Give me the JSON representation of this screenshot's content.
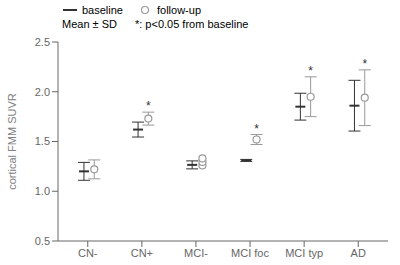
{
  "chart_data": {
    "type": "errorbar",
    "categories": [
      "CN-",
      "CN+",
      "MCI-",
      "MCI foc",
      "MCI typ",
      "AD"
    ],
    "ylabel": "cortical FMM SUVR",
    "ylim": [
      0.5,
      2.5
    ],
    "yticks": [
      0.5,
      {
        "value": 1,
        "label": "1.0"
      },
      1.5,
      {
        "value": 2,
        "label": "2.0"
      },
      2.5
    ],
    "grid": false,
    "legend": "upper left",
    "annotations": [
      "Mean ± SD",
      "*: p<0.05 from baseline"
    ],
    "significance_label": "*",
    "series": [
      {
        "name": "baseline",
        "color": "#333333",
        "marker": "dash",
        "values": [
          1.2,
          1.62,
          1.265,
          1.31,
          1.85,
          1.86
        ],
        "errors": [
          0.09,
          0.075,
          0.04,
          0.01,
          0.135,
          0.255
        ]
      },
      {
        "name": "follow-up",
        "color": "#999999",
        "marker": "circle",
        "values": [
          1.22,
          1.73,
          [
            1.26,
            1.295,
            1.33
          ],
          1.52,
          1.95,
          1.94
        ],
        "errors": [
          0.095,
          0.065,
          null,
          0.05,
          0.2,
          0.28
        ],
        "significant": [
          false,
          true,
          false,
          true,
          true,
          true
        ]
      }
    ]
  }
}
